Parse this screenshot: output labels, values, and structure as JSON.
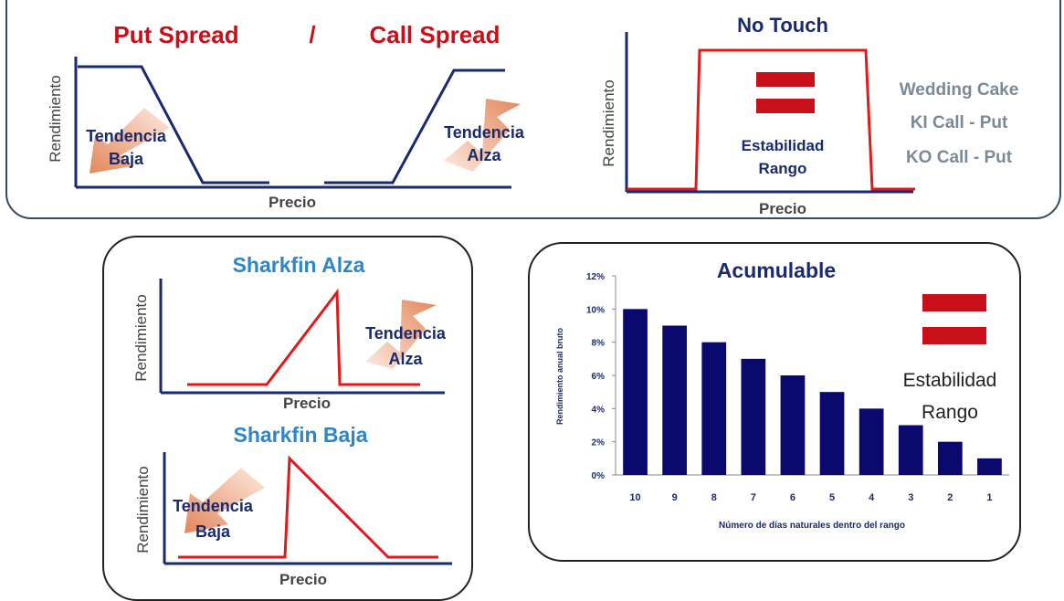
{
  "put_call": {
    "title_put": "Put Spread",
    "title_separator": "/",
    "title_call": "Call Spread",
    "ylabel": "Rendimiento",
    "xlabel": "Precio",
    "arrow_down_label": [
      "Tendencia",
      "Baja"
    ],
    "arrow_up_label": [
      "Tendencia",
      "Alza"
    ]
  },
  "no_touch": {
    "title": "No Touch",
    "ylabel": "Rendimiento",
    "xlabel": "Precio",
    "center_label": [
      "Estabilidad",
      "Rango"
    ],
    "related": [
      "Wedding Cake",
      "KI Call - Put",
      "KO Call - Put"
    ]
  },
  "sharkfin_alza": {
    "title": "Sharkfin Alza",
    "ylabel": "Rendimiento",
    "xlabel": "Precio",
    "arrow_label": [
      "Tendencia",
      "Alza"
    ]
  },
  "sharkfin_baja": {
    "title": "Sharkfin Baja",
    "ylabel": "Rendimiento",
    "xlabel": "Precio",
    "arrow_label": [
      "Tendencia",
      "Baja"
    ]
  },
  "acumulable": {
    "side_label": [
      "Estabilidad",
      "Rango"
    ]
  },
  "colors": {
    "red": "#c8101a",
    "navy": "#1a2a6e",
    "blue": "#2e86c8",
    "gray": "#7b8a98",
    "bar": "#0a0a6e",
    "arrow": "#e8875a"
  },
  "chart_data": {
    "type": "bar",
    "title": "Acumulable",
    "xlabel": "Número de días naturales dentro del rango",
    "ylabel": "Rendimiento anual bruto",
    "categories": [
      "10",
      "9",
      "8",
      "7",
      "6",
      "5",
      "4",
      "3",
      "2",
      "1"
    ],
    "values": [
      10,
      9,
      8,
      7,
      6,
      5,
      4,
      3,
      2,
      1
    ],
    "ylim": [
      0,
      12
    ],
    "yticks": [
      "0%",
      "2%",
      "4%",
      "6%",
      "8%",
      "10%",
      "12%"
    ],
    "grid": false,
    "legend": "none"
  }
}
